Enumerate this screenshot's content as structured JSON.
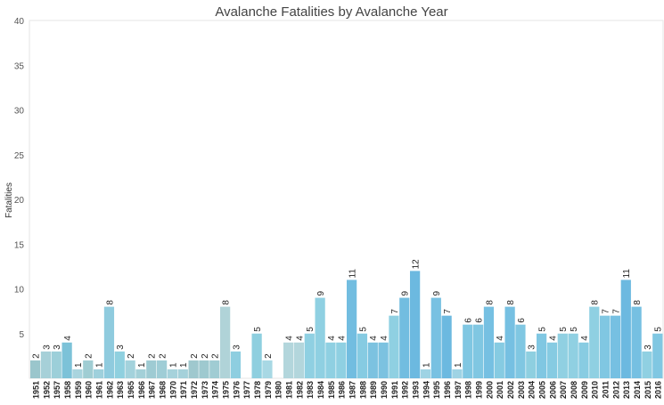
{
  "chart_data": {
    "type": "bar",
    "title": "Avalanche Fatalities by Avalanche Year",
    "ylabel": "Fatalities",
    "xlabel": "",
    "ylim": [
      0,
      40
    ],
    "yticks": [
      5,
      10,
      15,
      20,
      25,
      30,
      35,
      40
    ],
    "grid": false,
    "categories": [
      "1951",
      "1952",
      "1957",
      "1958",
      "1959",
      "1960",
      "1961",
      "1962",
      "1963",
      "1965",
      "1966",
      "1967",
      "1968",
      "1970",
      "1971",
      "1972",
      "1973",
      "1974",
      "1975",
      "1976",
      "1977",
      "1978",
      "1979",
      "1980",
      "1981",
      "1982",
      "1983",
      "1984",
      "1985",
      "1986",
      "1987",
      "1988",
      "1989",
      "1990",
      "1991",
      "1992",
      "1993",
      "1994",
      "1995",
      "1996",
      "1997",
      "1998",
      "1999",
      "2000",
      "2001",
      "2002",
      "2003",
      "2004",
      "2005",
      "2006",
      "2007",
      "2008",
      "2009",
      "2010",
      "2011",
      "2012",
      "2013",
      "2014",
      "2015",
      "2016"
    ],
    "values": [
      2,
      3,
      3,
      4,
      1,
      2,
      1,
      8,
      3,
      2,
      1,
      2,
      2,
      1,
      1,
      2,
      2,
      2,
      8,
      3,
      0,
      5,
      2,
      0,
      4,
      4,
      5,
      9,
      4,
      4,
      11,
      5,
      4,
      4,
      7,
      9,
      12,
      1,
      9,
      7,
      1,
      6,
      6,
      8,
      4,
      8,
      6,
      3,
      5,
      4,
      5,
      5,
      4,
      8,
      7,
      7,
      11,
      8,
      3,
      5
    ],
    "labels": [
      "2",
      "3",
      "3",
      "4",
      "1",
      "2",
      "1",
      "8",
      "3",
      "2",
      "1",
      "2",
      "2",
      "1",
      "1",
      "2",
      "2",
      "2",
      "8",
      "3",
      "",
      "5",
      "2",
      "",
      "4",
      "4",
      "5",
      "9",
      "4",
      "4",
      "11",
      "5",
      "4",
      "4",
      "7",
      "9",
      "12",
      "1",
      "9",
      "7",
      "1",
      "6",
      "6",
      "8",
      "4",
      "8",
      "6",
      "3",
      "5",
      "4",
      "5",
      "5",
      "4",
      "8",
      "7",
      "7",
      "11",
      "8",
      "3",
      "5"
    ],
    "colors": [
      "#9ac6cc",
      "#a6d0d8",
      "#9ccfd9",
      "#7cc2d8",
      "#a9d4de",
      "#a0cdd3",
      "#9fd0dc",
      "#8fcbde",
      "#8fd0df",
      "#a3d2dc",
      "#a3d0d8",
      "#9ecbd3",
      "#9fcdd6",
      "#a6d2db",
      "#a5d1da",
      "#9fc8ce",
      "#9ec9cf",
      "#a0ccd3",
      "#b0d3d8",
      "#8ecee0",
      "#ffffff",
      "#8ecfdf",
      "#a8d8e4",
      "#ffffff",
      "#b3d6dc",
      "#b3d6dc",
      "#8fd0e2",
      "#8fd0e2",
      "#8fd0e2",
      "#8fd0e2",
      "#72bde0",
      "#86cbe2",
      "#7cc2e0",
      "#7cc2e0",
      "#8fd0e2",
      "#72bde0",
      "#6cb9e0",
      "#9fd3e4",
      "#78c1e2",
      "#6cb9e0",
      "#9fd3e4",
      "#80c7e2",
      "#80c7e2",
      "#76c0e2",
      "#86cbe2",
      "#76c0e2",
      "#80c7e2",
      "#8ecfe0",
      "#80c7e2",
      "#86cbe2",
      "#90d0e2",
      "#90d0e2",
      "#88cce2",
      "#8fd0e2",
      "#80c7e2",
      "#76c0e2",
      "#6cb9e0",
      "#76c0e2",
      "#90d0e2",
      "#80c7e2"
    ]
  }
}
